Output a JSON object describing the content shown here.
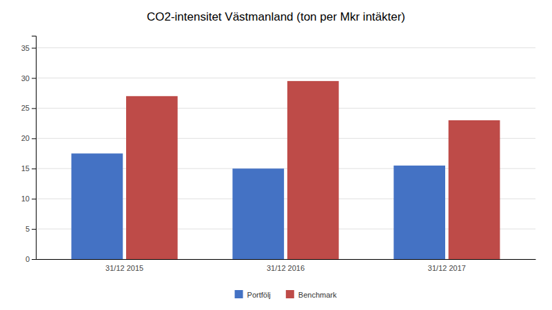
{
  "chart_data": {
    "type": "bar",
    "title": "CO2-intensitet Västmanland (ton per Mkr intäkter)",
    "categories": [
      "31/12 2015",
      "31/12 2016",
      "31/12 2017"
    ],
    "series": [
      {
        "name": "Portfölj",
        "color": "#4472C4",
        "values": [
          17.5,
          15.0,
          15.5
        ]
      },
      {
        "name": "Benchmark",
        "color": "#BE4B48",
        "values": [
          27.0,
          29.5,
          23.0
        ]
      }
    ],
    "ylim": [
      0,
      37
    ],
    "yticks": [
      0,
      5,
      10,
      15,
      20,
      25,
      30,
      35
    ],
    "grid": true,
    "legend": "bottom"
  }
}
